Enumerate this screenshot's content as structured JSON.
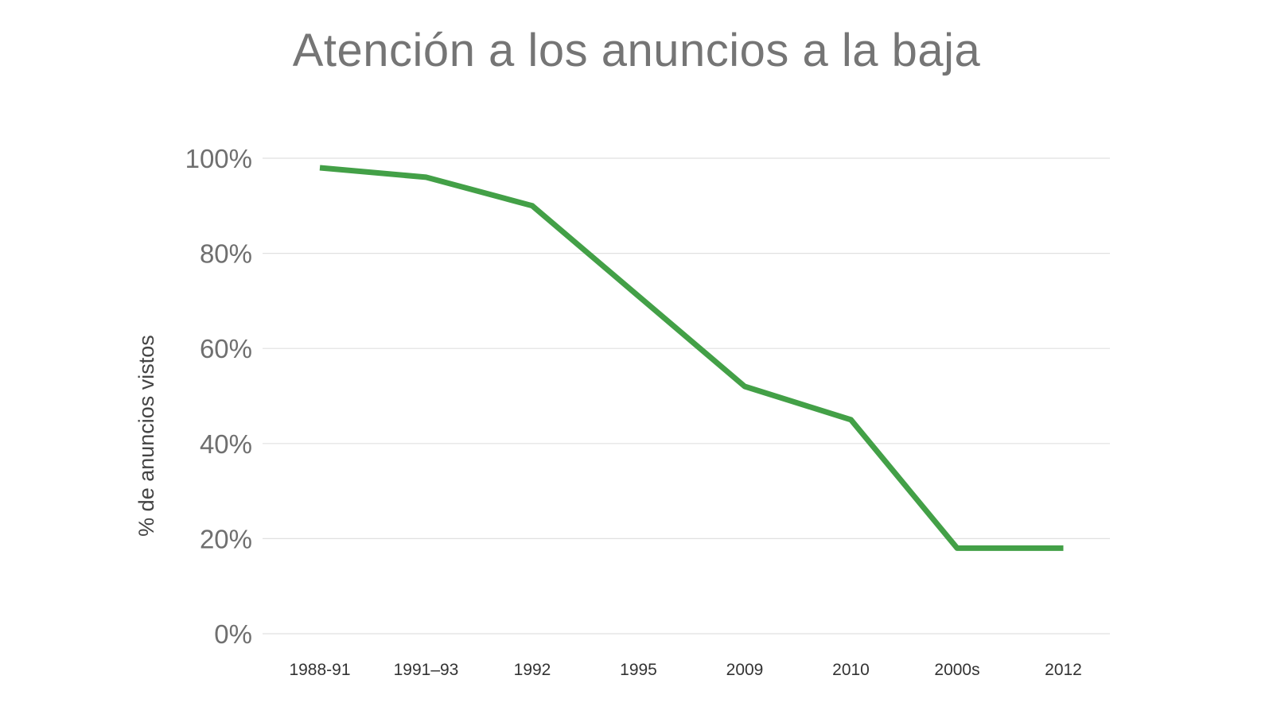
{
  "chart_data": {
    "type": "line",
    "title": "Atención a los anuncios a la baja",
    "xlabel": "",
    "ylabel": "% de anuncios vistos",
    "categories": [
      "1988-91",
      "1991–93",
      "1992",
      "1995",
      "2009",
      "2010",
      "2000s",
      "2012"
    ],
    "series": [
      {
        "values": [
          98,
          96,
          90,
          71,
          52,
          45,
          18,
          18
        ]
      }
    ],
    "ylim": [
      0,
      100
    ],
    "yticks": [
      0,
      20,
      40,
      60,
      80,
      100
    ],
    "ytick_labels": [
      "0%",
      "20%",
      "40%",
      "60%",
      "80%",
      "100%"
    ],
    "grid": true,
    "legend": "none",
    "colors": {
      "line": "#43a047",
      "grid": "#e0e0e0"
    }
  }
}
